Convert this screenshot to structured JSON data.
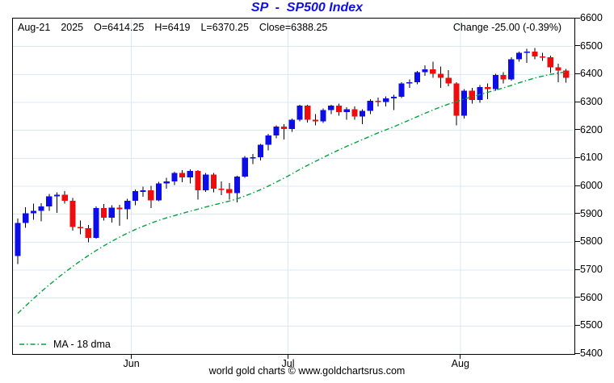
{
  "title": {
    "text": "SP  -  SP500 Index"
  },
  "colors": {
    "title": "#1111dd",
    "text": "#000000",
    "background": "#ffffff"
  },
  "info_bar": {
    "date": "Aug-21",
    "year": "2025",
    "open": "O=6414.25",
    "high": "H=6419",
    "low": "L=6370.25",
    "close": "Close=6388.25",
    "change": "Change -25.00 (-0.39%)"
  },
  "legend": {
    "ma_label": "MA - 18 dma"
  },
  "footer": {
    "credit": "world gold charts © www.goldchartsrus.com"
  },
  "chart_data": {
    "type": "candlestick",
    "symbol": "SP",
    "name": "SP500 Index",
    "ylim": [
      5400,
      6600
    ],
    "y_ticks": [
      6600,
      6500,
      6400,
      6300,
      6200,
      6100,
      6000,
      5900,
      5800,
      5700,
      5600,
      5500,
      5400
    ],
    "x_ticks": [
      {
        "label": "Jun",
        "i": 14.5
      },
      {
        "label": "Jul",
        "i": 34.5
      },
      {
        "label": "Aug",
        "i": 56.5
      }
    ],
    "grid": true,
    "legend_position": "bottom-left",
    "dates": [
      "May-12",
      "May-13",
      "May-14",
      "May-15",
      "May-16",
      "May-19",
      "May-20",
      "May-21",
      "May-22",
      "May-23",
      "May-27",
      "May-28",
      "May-29",
      "May-30",
      "Jun-02",
      "Jun-03",
      "Jun-04",
      "Jun-05",
      "Jun-06",
      "Jun-09",
      "Jun-10",
      "Jun-11",
      "Jun-12",
      "Jun-13",
      "Jun-16",
      "Jun-17",
      "Jun-18",
      "Jun-20",
      "Jun-23",
      "Jun-24",
      "Jun-25",
      "Jun-26",
      "Jun-27",
      "Jun-30",
      "Jul-01",
      "Jul-02",
      "Jul-03",
      "Jul-07",
      "Jul-08",
      "Jul-09",
      "Jul-10",
      "Jul-11",
      "Jul-14",
      "Jul-15",
      "Jul-16",
      "Jul-17",
      "Jul-18",
      "Jul-21",
      "Jul-22",
      "Jul-23",
      "Jul-24",
      "Jul-25",
      "Jul-28",
      "Jul-29",
      "Jul-30",
      "Jul-31",
      "Aug-01",
      "Aug-04",
      "Aug-05",
      "Aug-06",
      "Aug-07",
      "Aug-08",
      "Aug-11",
      "Aug-12",
      "Aug-13",
      "Aug-14",
      "Aug-15",
      "Aug-18",
      "Aug-19",
      "Aug-20",
      "Aug-21"
    ],
    "open": [
      5750,
      5869,
      5903,
      5912,
      5928,
      5964,
      5970,
      5948,
      5855,
      5850,
      5815,
      5922,
      5888,
      5924,
      5918,
      5948,
      5982,
      5985,
      5950,
      6010,
      6018,
      6048,
      6032,
      6055,
      5985,
      6042,
      5992,
      5990,
      5976,
      6034,
      6102,
      6104,
      6148,
      6182,
      6214,
      6205,
      6238,
      6288,
      6238,
      6232,
      6272,
      6288,
      6265,
      6276,
      6250,
      6270,
      6306,
      6302,
      6315,
      6320,
      6368,
      6372,
      6408,
      6418,
      6402,
      6388,
      6368,
      6252,
      6342,
      6308,
      6355,
      6348,
      6398,
      6382,
      6455,
      6478,
      6482,
      6465,
      6462,
      6425,
      6414.25
    ],
    "high": [
      5884,
      5925,
      5938,
      5940,
      5972,
      5978,
      5982,
      5958,
      5878,
      5862,
      5928,
      5936,
      5932,
      5934,
      5955,
      5988,
      5998,
      6002,
      6016,
      6030,
      6052,
      6058,
      6060,
      6058,
      6048,
      6048,
      6018,
      6012,
      6038,
      6108,
      6115,
      6152,
      6188,
      6218,
      6222,
      6242,
      6292,
      6292,
      6258,
      6278,
      6292,
      6295,
      6282,
      6285,
      6276,
      6312,
      6318,
      6322,
      6328,
      6372,
      6382,
      6412,
      6432,
      6445,
      6428,
      6415,
      6372,
      6348,
      6352,
      6362,
      6368,
      6402,
      6408,
      6462,
      6482,
      6492,
      6495,
      6478,
      6468,
      6438,
      6419
    ],
    "low": [
      5722,
      5852,
      5880,
      5874,
      5912,
      5905,
      5938,
      5842,
      5828,
      5800,
      5812,
      5878,
      5870,
      5858,
      5882,
      5932,
      5962,
      5922,
      5946,
      5992,
      6004,
      6014,
      6010,
      5952,
      5980,
      5978,
      5968,
      5952,
      5942,
      6030,
      6080,
      6092,
      6128,
      6172,
      6168,
      6195,
      6232,
      6228,
      6218,
      6226,
      6258,
      6252,
      6238,
      6238,
      6222,
      6258,
      6285,
      6285,
      6272,
      6316,
      6352,
      6365,
      6395,
      6388,
      6352,
      6358,
      6218,
      6242,
      6295,
      6298,
      6312,
      6342,
      6368,
      6378,
      6445,
      6442,
      6455,
      6448,
      6405,
      6372,
      6370.25
    ],
    "close": [
      5869,
      5903,
      5912,
      5928,
      5964,
      5970,
      5948,
      5855,
      5850,
      5815,
      5922,
      5888,
      5924,
      5918,
      5948,
      5982,
      5985,
      5950,
      6010,
      6018,
      6048,
      6032,
      6055,
      5985,
      6042,
      5992,
      5990,
      5976,
      6034,
      6102,
      6104,
      6148,
      6182,
      6214,
      6205,
      6238,
      6288,
      6238,
      6232,
      6272,
      6288,
      6265,
      6276,
      6250,
      6270,
      6306,
      6302,
      6315,
      6320,
      6368,
      6372,
      6408,
      6418,
      6402,
      6388,
      6368,
      6252,
      6342,
      6308,
      6355,
      6348,
      6398,
      6382,
      6455,
      6478,
      6482,
      6465,
      6462,
      6425,
      6413.25,
      6388.25
    ],
    "ma18": [
      5545,
      5572,
      5598,
      5623,
      5647,
      5670,
      5692,
      5713,
      5733,
      5752,
      5770,
      5787,
      5803,
      5818,
      5832,
      5845,
      5857,
      5868,
      5878,
      5887,
      5895,
      5903,
      5911,
      5918,
      5926,
      5933,
      5940,
      5947,
      5955,
      5965,
      5976,
      5988,
      6001,
      6015,
      6029,
      6044,
      6060,
      6075,
      6089,
      6103,
      6117,
      6130,
      6143,
      6155,
      6167,
      6179,
      6191,
      6202,
      6213,
      6225,
      6237,
      6249,
      6261,
      6273,
      6284,
      6294,
      6303,
      6312,
      6320,
      6328,
      6336,
      6344,
      6352,
      6361,
      6370,
      6379,
      6387,
      6394,
      6400,
      6405,
      6409
    ],
    "colors": {
      "up": "#0d0de8",
      "down": "#ee0c0c",
      "wick": "#000000",
      "ma": "#00a43b",
      "grid": "#dbe8f5"
    }
  }
}
